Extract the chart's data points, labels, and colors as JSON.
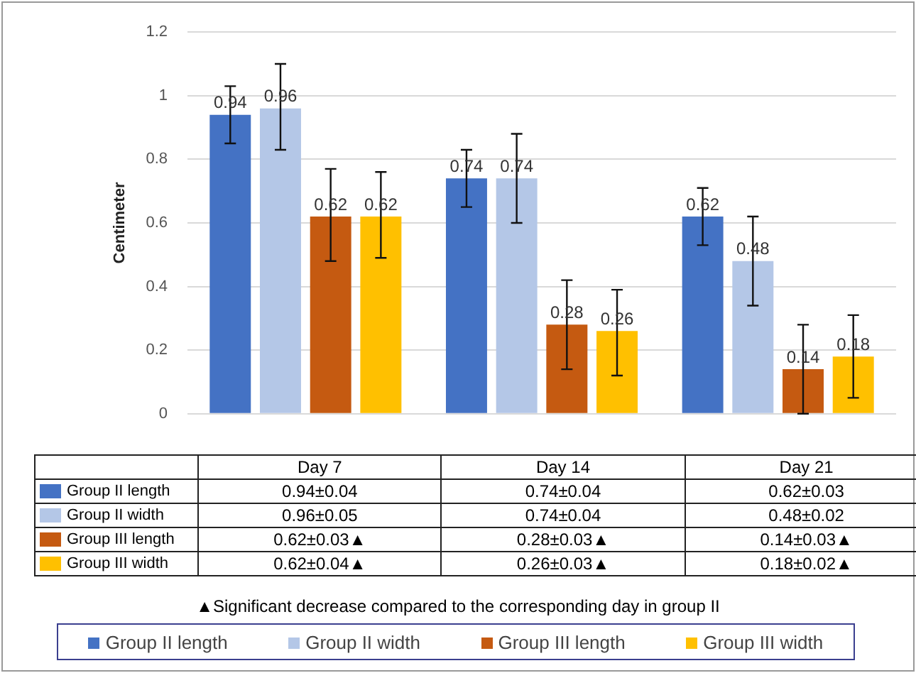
{
  "chart_data": {
    "type": "bar",
    "ylabel": "Centimeter",
    "categories": [
      "Day 7",
      "Day 14",
      "Day 21"
    ],
    "series": [
      {
        "name": "Group II length",
        "color": "#4472c4",
        "values": [
          0.94,
          0.74,
          0.62
        ],
        "errors": [
          [
            0.85,
            1.03
          ],
          [
            0.65,
            0.83
          ],
          [
            0.53,
            0.71
          ]
        ]
      },
      {
        "name": "Group II width",
        "color": "#b4c7e7",
        "values": [
          0.96,
          0.74,
          0.48
        ],
        "errors": [
          [
            0.83,
            1.1
          ],
          [
            0.6,
            0.88
          ],
          [
            0.34,
            0.62
          ]
        ]
      },
      {
        "name": "Group III length",
        "color": "#c55a11",
        "values": [
          0.62,
          0.28,
          0.14
        ],
        "errors": [
          [
            0.48,
            0.77
          ],
          [
            0.14,
            0.42
          ],
          [
            0,
            0.28
          ]
        ]
      },
      {
        "name": "Group III width",
        "color": "#ffc000",
        "values": [
          0.62,
          0.26,
          0.18
        ],
        "errors": [
          [
            0.49,
            0.76
          ],
          [
            0.12,
            0.39
          ],
          [
            0.05,
            0.31
          ]
        ]
      }
    ],
    "ylim": [
      0,
      1.2
    ],
    "yticks": [
      0,
      0.2,
      0.4,
      0.6,
      0.8,
      1,
      1.2
    ],
    "grid": "y",
    "data_labels": true,
    "legend": "bottom",
    "annotations": [
      "0.94±0.04",
      "0.74±0.04",
      "0.62±0.03",
      "0.96±0.05",
      "0.74±0.04",
      "0.48±0.02",
      "0.62±0.03▲",
      "0.28±0.03▲",
      "0.14±0.03▲",
      "0.62±0.04▲",
      "0.26±0.03▲",
      "0.18±0.02▲",
      "▲Significant decrease compared to the corresponding day in group II"
    ]
  }
}
